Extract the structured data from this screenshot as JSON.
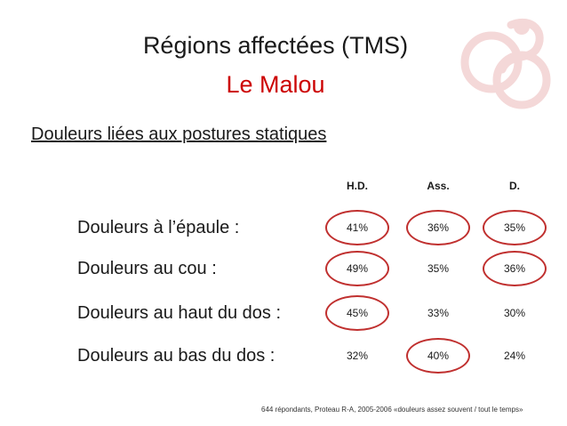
{
  "title": {
    "main": "Régions affectées (TMS)",
    "sub": "Le Malou"
  },
  "subtitle": "Douleurs liées aux postures statiques",
  "columns": [
    "H.D.",
    "Ass.",
    "D."
  ],
  "rows": [
    {
      "label": "Douleurs à l’épaule :",
      "values": [
        "41%",
        "36%",
        "35%"
      ],
      "circled": [
        true,
        true,
        true
      ]
    },
    {
      "label": "Douleurs au cou :",
      "values": [
        "49%",
        "35%",
        "36%"
      ],
      "circled": [
        true,
        false,
        true
      ]
    },
    {
      "label": "Douleurs au haut du dos :",
      "values": [
        "45%",
        "33%",
        "30%"
      ],
      "circled": [
        true,
        false,
        false
      ]
    },
    {
      "label": "Douleurs au bas du dos :",
      "values": [
        "32%",
        "40%",
        "24%"
      ],
      "circled": [
        false,
        true,
        false
      ]
    }
  ],
  "footnote": "644 répondants, Proteau R-A, 2005-2006 «douleurs assez souvent / tout le temps»",
  "colors": {
    "accent": "#cc0000",
    "circle": "#c0302f",
    "logo": "#f4d8d8"
  },
  "icons": {
    "logo": "cyclist-watermark-logo"
  }
}
